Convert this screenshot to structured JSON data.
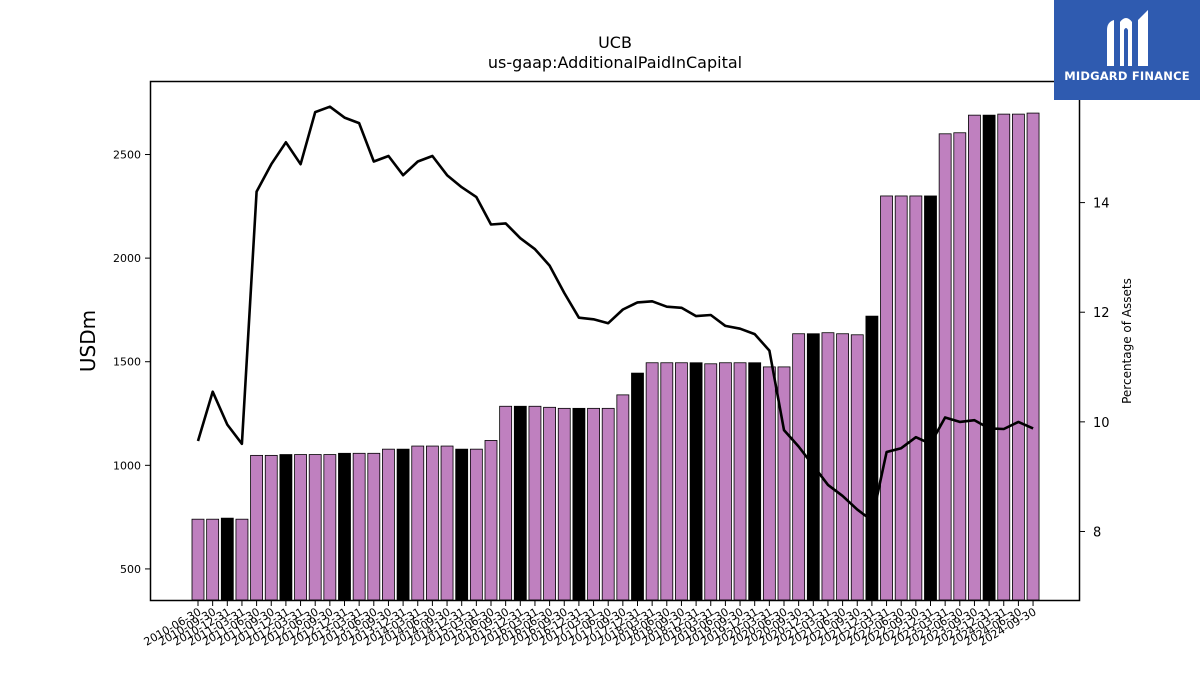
{
  "brand": {
    "name": "MIDGARD FINANCE",
    "icon": "midgard-m-logo-icon",
    "color": "#2f5bb0"
  },
  "chart_data": {
    "type": "bar",
    "title": "UCB",
    "subtitle": "us-gaap:AdditionalPaidInCapital",
    "ylabel": "USDm",
    "y2label": "Percentage of Assets",
    "ylim": [
      350,
      2850
    ],
    "y2lim": [
      6.75,
      16.2
    ],
    "yticks": [
      500,
      1000,
      1500,
      2000,
      2500
    ],
    "y2ticks": [
      8,
      10,
      12,
      14
    ],
    "bar_color": "#bf80bf",
    "highlight_color": "#000000",
    "line_color": "#000000",
    "categories": [
      "2010-06-30",
      "2010-09-30",
      "2010-12-31",
      "2011-03-31",
      "2011-06-30",
      "2011-09-30",
      "2011-12-31",
      "2012-03-31",
      "2012-06-30",
      "2012-09-30",
      "2012-12-31",
      "2013-03-31",
      "2013-06-30",
      "2013-09-30",
      "2013-12-31",
      "2014-03-31",
      "2014-06-30",
      "2014-09-30",
      "2014-12-31",
      "2015-03-31",
      "2015-06-30",
      "2015-09-30",
      "2015-12-31",
      "2016-03-31",
      "2016-06-30",
      "2016-09-30",
      "2016-12-31",
      "2017-03-31",
      "2017-06-30",
      "2017-09-30",
      "2017-12-31",
      "2018-03-31",
      "2018-06-30",
      "2018-09-30",
      "2018-12-31",
      "2019-03-31",
      "2019-06-30",
      "2019-09-30",
      "2019-12-31",
      "2020-03-31",
      "2020-06-30",
      "2020-09-30",
      "2020-12-31",
      "2021-03-31",
      "2021-06-30",
      "2021-09-30",
      "2021-12-31",
      "2022-03-31",
      "2022-06-30",
      "2022-09-30",
      "2022-12-31",
      "2023-03-31",
      "2023-06-30",
      "2023-09-30",
      "2023-12-31",
      "2024-03-31",
      "2024-06-30",
      "2024-09-30"
    ],
    "tick_labels": [
      "2010-06-30",
      "2010-09-30",
      "2010-12-31",
      "2011-03-31",
      "2011-06-30",
      "2011-09-30",
      "2011-12-31",
      "2012-03-31",
      "2012-06-30",
      "2012-09-30",
      "2012-12-31",
      "2013-03-31",
      "2013-06-30",
      "2013-09-30",
      "2013-12-31",
      "2014-03-31",
      "2014-06-30",
      "2014-09-30",
      "2014-12-31",
      "2015-03-31",
      "2015-06-30",
      "2015-09-30",
      "2015-12-31",
      "2016-03-31",
      "2016-06-30",
      "2016-09-30",
      "2016-12-31",
      "2017-03-31",
      "2017-06-30",
      "2017-09-30",
      "2017-12-31",
      "2018-03-31",
      "2018-06-30",
      "2018-09-30",
      "2018-12-31",
      "2019-03-31",
      "2019-06-30",
      "2019-09-30",
      "2019-12-31",
      "2020-03-31",
      "2020-06-30",
      "2020-09-30",
      "2020-12-31",
      "2021-03-31",
      "2021-06-30",
      "2021-09-30",
      "2021-12-31",
      "2022-03-31",
      "2022-06-30",
      "2022-09-30",
      "2022-12-31",
      "2023-03-31",
      "2023-06-30",
      "2023-09-30",
      "2023-12-31",
      "2024-03-31",
      "2024-06-30",
      "2024-09-30"
    ],
    "series": [
      {
        "type": "bar",
        "axis": "left",
        "values": [
          740,
          740,
          745,
          740,
          1048,
          1048,
          1052,
          1052,
          1052,
          1052,
          1058,
          1058,
          1058,
          1078,
          1078,
          1093,
          1093,
          1093,
          1078,
          1078,
          1120,
          1285,
          1285,
          1285,
          1280,
          1275,
          1275,
          1275,
          1275,
          1340,
          1445,
          1495,
          1495,
          1495,
          1495,
          1490,
          1495,
          1495,
          1495,
          1475,
          1475,
          1635,
          1635,
          1640,
          1635,
          1630,
          1720,
          2300,
          2300,
          2300,
          2300,
          2600,
          2605,
          2690,
          2690,
          2695,
          2695,
          2700
        ],
        "highlight": [
          false,
          false,
          true,
          false,
          false,
          false,
          true,
          false,
          false,
          false,
          true,
          false,
          false,
          false,
          true,
          false,
          false,
          false,
          true,
          false,
          false,
          false,
          true,
          false,
          false,
          false,
          true,
          false,
          false,
          false,
          true,
          false,
          false,
          false,
          true,
          false,
          false,
          false,
          true,
          false,
          false,
          false,
          true,
          false,
          false,
          false,
          true,
          false,
          false,
          false,
          true,
          false,
          false,
          false,
          true,
          false,
          false,
          false
        ]
      },
      {
        "type": "line",
        "axis": "right",
        "values": [
          9.65,
          10.55,
          9.95,
          9.6,
          14.2,
          14.7,
          15.1,
          14.7,
          15.65,
          15.75,
          15.55,
          15.45,
          14.75,
          14.85,
          14.5,
          14.75,
          14.85,
          14.5,
          14.28,
          14.1,
          13.6,
          13.62,
          13.35,
          13.15,
          12.85,
          12.35,
          11.9,
          11.87,
          11.8,
          12.05,
          12.18,
          12.2,
          12.1,
          12.08,
          11.93,
          11.95,
          11.75,
          11.7,
          11.6,
          11.3,
          9.85,
          9.55,
          9.2,
          8.85,
          8.65,
          8.4,
          8.2,
          9.45,
          9.52,
          9.72,
          9.6,
          10.08,
          10.0,
          10.03,
          9.88,
          9.87,
          10.0,
          9.88
        ]
      }
    ]
  }
}
